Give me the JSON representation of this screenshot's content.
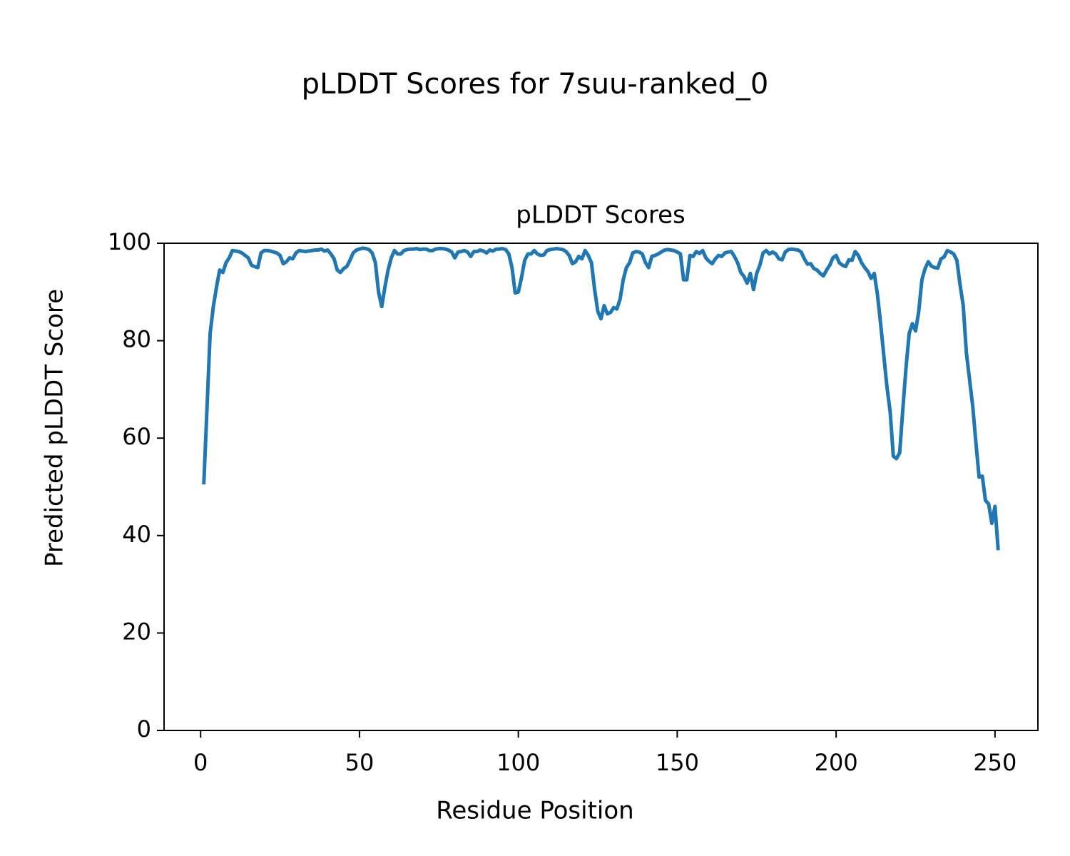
{
  "chart_data": {
    "type": "line",
    "suptitle": "pLDDT Scores for 7suu-ranked_0",
    "title": "pLDDT Scores",
    "xlabel": "Residue Position",
    "ylabel": "Predicted pLDDT Score",
    "color": "#1f77b4",
    "xlim": [
      -11.5,
      263.5
    ],
    "ylim": [
      0,
      100
    ],
    "xticks": [
      0,
      50,
      100,
      150,
      200,
      250
    ],
    "yticks": [
      0,
      20,
      40,
      60,
      80,
      100
    ],
    "x": [
      1,
      2,
      3,
      4,
      5,
      6,
      7,
      8,
      9,
      10,
      11,
      12,
      13,
      14,
      15,
      16,
      17,
      18,
      19,
      20,
      21,
      22,
      23,
      24,
      25,
      26,
      27,
      28,
      29,
      30,
      31,
      32,
      33,
      34,
      35,
      36,
      37,
      38,
      39,
      40,
      41,
      42,
      43,
      44,
      45,
      46,
      47,
      48,
      49,
      50,
      51,
      52,
      53,
      54,
      55,
      56,
      57,
      58,
      59,
      60,
      61,
      62,
      63,
      64,
      65,
      66,
      67,
      68,
      69,
      70,
      71,
      72,
      73,
      74,
      75,
      76,
      77,
      78,
      79,
      80,
      81,
      82,
      83,
      84,
      85,
      86,
      87,
      88,
      89,
      90,
      91,
      92,
      93,
      94,
      95,
      96,
      97,
      98,
      99,
      100,
      101,
      102,
      103,
      104,
      105,
      106,
      107,
      108,
      109,
      110,
      111,
      112,
      113,
      114,
      115,
      116,
      117,
      118,
      119,
      120,
      121,
      122,
      123,
      124,
      125,
      126,
      127,
      128,
      129,
      130,
      131,
      132,
      133,
      134,
      135,
      136,
      137,
      138,
      139,
      140,
      141,
      142,
      143,
      144,
      145,
      146,
      147,
      148,
      149,
      150,
      151,
      152,
      153,
      154,
      155,
      156,
      157,
      158,
      159,
      160,
      161,
      162,
      163,
      164,
      165,
      166,
      167,
      168,
      169,
      170,
      171,
      172,
      173,
      174,
      175,
      176,
      177,
      178,
      179,
      180,
      181,
      182,
      183,
      184,
      185,
      186,
      187,
      188,
      189,
      190,
      191,
      192,
      193,
      194,
      195,
      196,
      197,
      198,
      199,
      200,
      201,
      202,
      203,
      204,
      205,
      206,
      207,
      208,
      209,
      210,
      211,
      212,
      213,
      214,
      215,
      216,
      217,
      218,
      219,
      220,
      221,
      222,
      223,
      224,
      225,
      226,
      227,
      228,
      229,
      230,
      231,
      232,
      233,
      234,
      235,
      236,
      237,
      238,
      239,
      240,
      241,
      242,
      243,
      244,
      245,
      246,
      247,
      248,
      249,
      250,
      251
    ],
    "values": [
      50.5,
      66,
      81.5,
      87,
      91,
      94.5,
      94,
      96,
      97,
      98.5,
      98.4,
      98.3,
      98,
      97.5,
      97,
      95.5,
      95.2,
      95,
      98,
      98.5,
      98.5,
      98.4,
      98.2,
      98,
      97.5,
      95.8,
      96.2,
      97,
      96.8,
      98,
      98.5,
      98.4,
      98.3,
      98.4,
      98.5,
      98.6,
      98.6,
      98.8,
      98.4,
      98.6,
      97.8,
      96.8,
      94.5,
      94,
      94.8,
      95.2,
      96.5,
      98,
      98.6,
      98.8,
      99,
      98.9,
      98.7,
      98,
      96,
      90,
      87,
      91,
      94.5,
      97,
      98.5,
      97.8,
      97.8,
      98.5,
      98.7,
      98.8,
      98.8,
      98.9,
      98.7,
      98.8,
      98.8,
      98.5,
      98.5,
      98.8,
      98.9,
      98.9,
      98.8,
      98.6,
      98.2,
      97,
      98.2,
      98.3,
      98.5,
      98.2,
      97.3,
      98.3,
      98.3,
      98.6,
      98.4,
      98,
      98.6,
      98.4,
      98.8,
      98.8,
      98.9,
      98.7,
      97.8,
      95,
      89.8,
      90,
      93,
      96.5,
      97.8,
      97.8,
      98.5,
      97.8,
      97.5,
      97.6,
      98.5,
      98.7,
      98.8,
      98.9,
      98.8,
      98.7,
      98.3,
      97.5,
      95.8,
      96.2,
      97.3,
      96.8,
      98.5,
      97.5,
      96,
      90.5,
      86,
      84.5,
      87.2,
      85.5,
      85.8,
      86.8,
      86.5,
      88.5,
      92.5,
      95,
      96,
      98,
      98.3,
      98.2,
      97.8,
      96,
      95,
      97.3,
      97.5,
      97.8,
      98.2,
      98.6,
      98.7,
      98.6,
      98.5,
      98.2,
      97.8,
      92.5,
      92.5,
      97.5,
      97.3,
      98.3,
      97.9,
      98.5,
      97,
      96.3,
      95.8,
      96.8,
      97.5,
      97.3,
      98,
      98.2,
      98.3,
      97.3,
      96,
      94,
      93.2,
      91.8,
      93.8,
      90.5,
      93.8,
      95.5,
      98,
      98.5,
      97.8,
      98.2,
      97.8,
      96.8,
      96.6,
      98.2,
      98.7,
      98.8,
      98.7,
      98.6,
      98.2,
      96.8,
      95.7,
      95.8,
      94.8,
      94.5,
      93.8,
      93.3,
      94.5,
      95.5,
      97,
      97.5,
      96,
      95.5,
      95.2,
      96.6,
      96.5,
      98.3,
      97.5,
      96,
      95,
      94.2,
      92.8,
      93.8,
      89.5,
      83.5,
      77,
      70.5,
      65.5,
      56.3,
      55.8,
      57,
      66,
      74.5,
      81.5,
      83.5,
      82,
      86,
      92.5,
      94.8,
      96.2,
      95.3,
      95,
      94.9,
      96.8,
      97.2,
      98.5,
      98.2,
      97.8,
      96.5,
      91.5,
      87.2,
      77.5,
      72,
      66.5,
      59,
      52,
      52.2,
      47.2,
      46.5,
      42.5,
      46,
      37
    ]
  }
}
